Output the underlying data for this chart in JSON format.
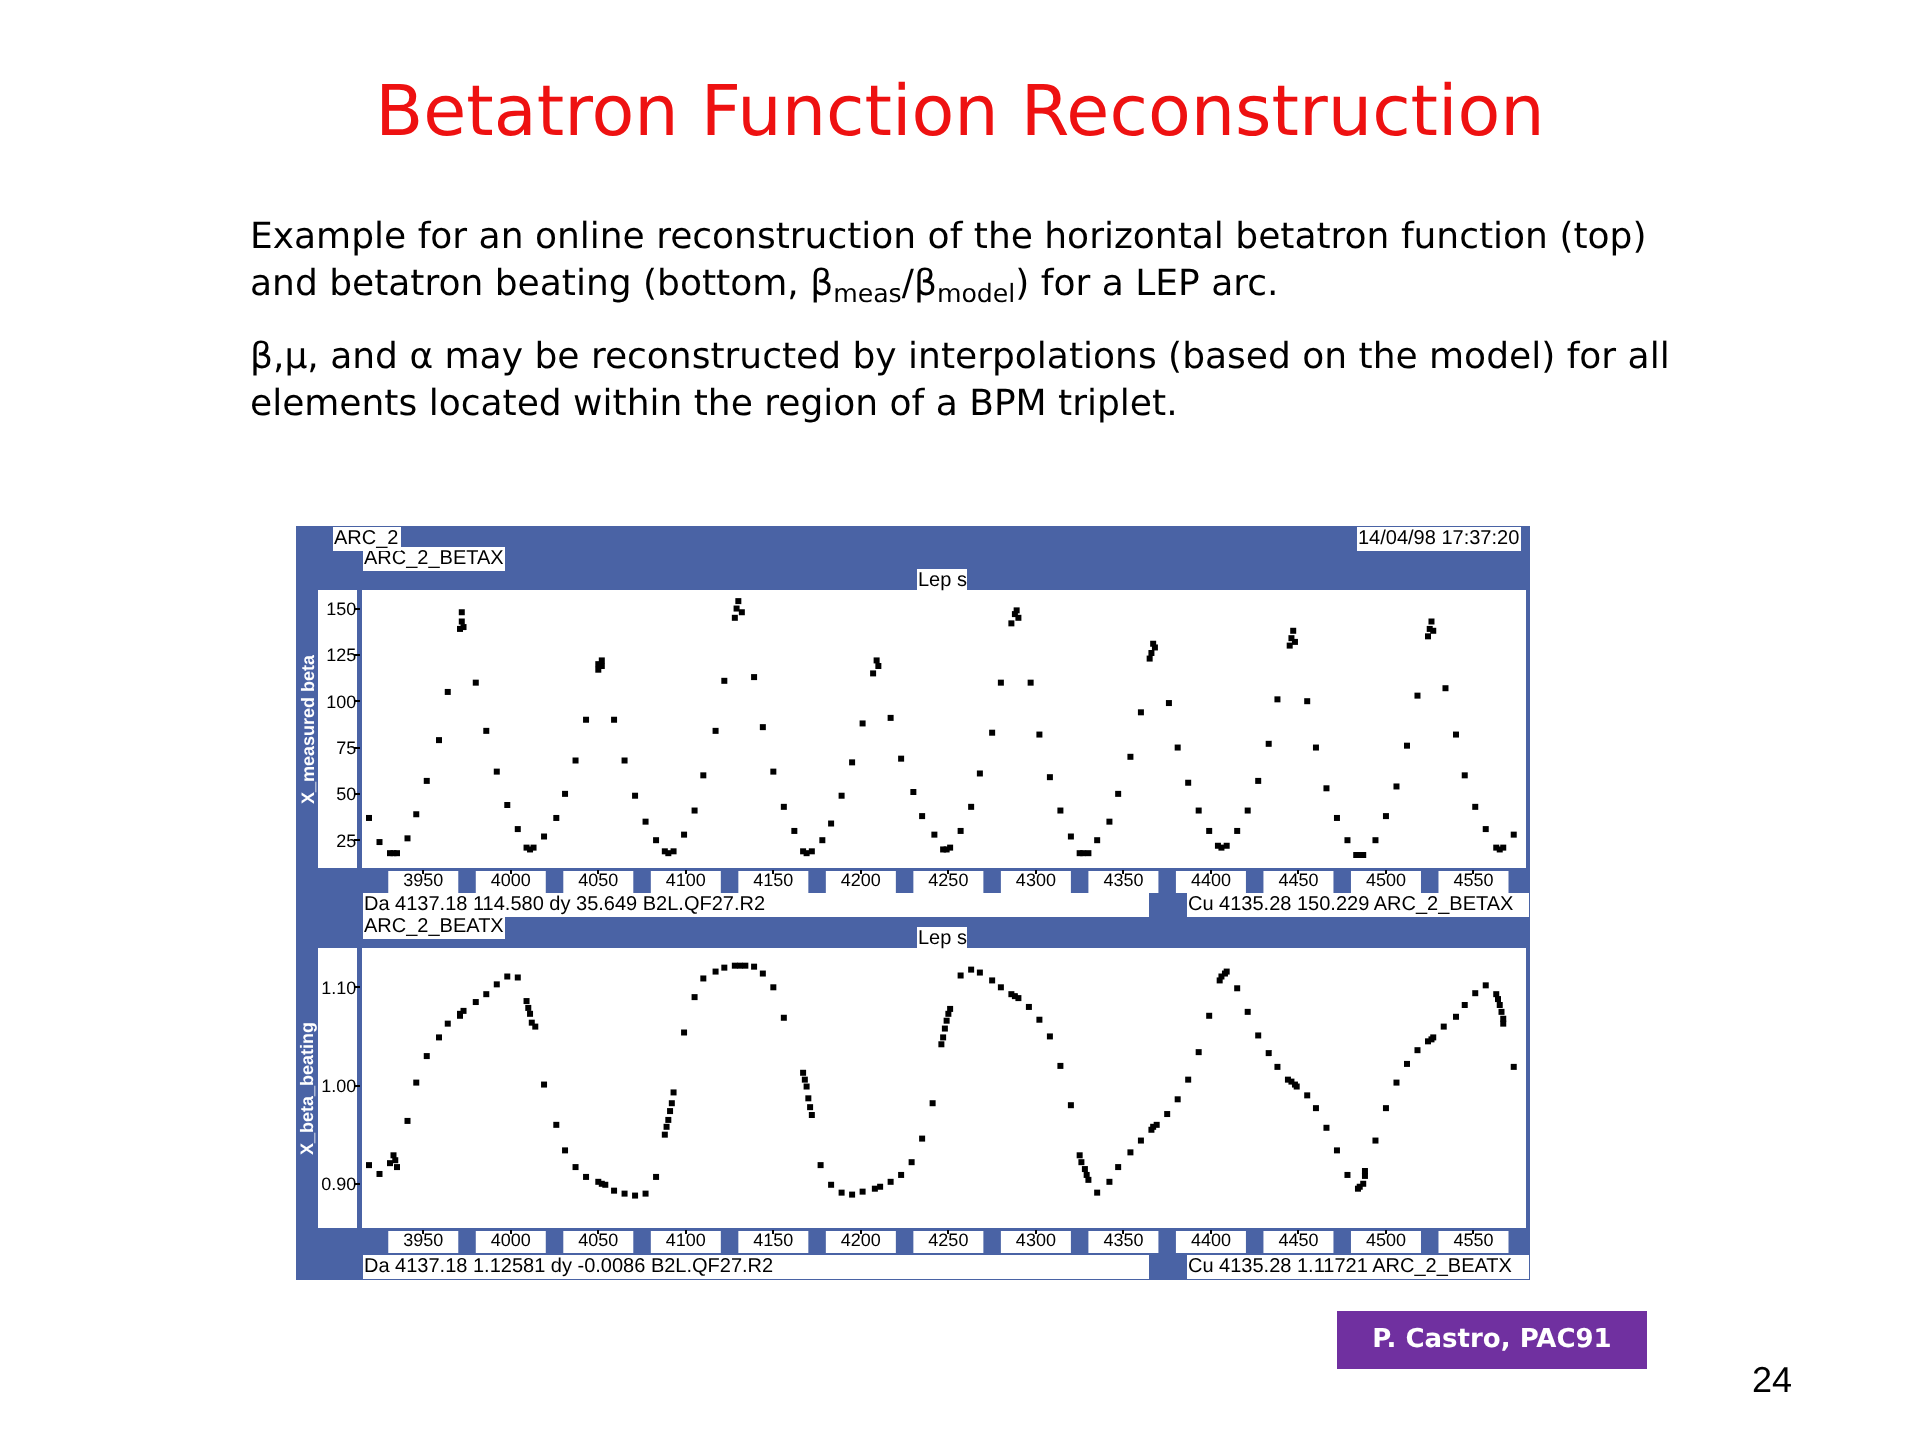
{
  "chart_data": [
    {
      "type": "scatter",
      "title": "Betatron Function Reconstruction",
      "subtitle": "ARC_2_BETAX",
      "xlabel": "Lep s",
      "ylabel": "X_measured beta",
      "annotations": [
        "Example for an online reconstruction of the horizontal betatron function (top) and betatron beating (bottom, β$_{meas}$/β$_{model}$) for a LEP arc.",
        "β,μ, and α may be reconstructed by interpolations (based on the model) for all elements located within the region of a BPM triplet.",
        "ARC_2",
        "14/04/98 17:37:20",
        "Da 4137.18 114.580 dy 35.649 B2L.QF27.R2",
        "Cu 4135.28 150.229 ARC_2_BETAX"
      ],
      "x": [
        3919,
        3925,
        3931,
        3933,
        3935,
        3941,
        3946,
        3952,
        3959,
        3964,
        3972,
        3972,
        3973,
        3971,
        3980,
        3986,
        3992,
        3998,
        4004,
        4009,
        4011,
        4013,
        4019,
        4026,
        4031,
        4037,
        4043,
        4052,
        4050,
        4052,
        4050,
        4059,
        4065,
        4071,
        4077,
        4083,
        4088,
        4090,
        4093,
        4099,
        4105,
        4110,
        4117,
        4122,
        4130,
        4129,
        4132,
        4128,
        4139,
        4144,
        4150,
        4156,
        4162,
        4167,
        4169,
        4172,
        4178,
        4183,
        4189,
        4195,
        4201,
        4209,
        4210,
        4207,
        4217,
        4223,
        4230,
        4235,
        4242,
        4247,
        4249,
        4251,
        4257,
        4263,
        4268,
        4275,
        4280,
        4289,
        4288,
        4290,
        4286,
        4297,
        4302,
        4308,
        4314,
        4320,
        4325,
        4327,
        4330,
        4335,
        4342,
        4347,
        4354,
        4360,
        4367,
        4368,
        4366,
        4365,
        4376,
        4381,
        4387,
        4393,
        4399,
        4404,
        4406,
        4409,
        4415,
        4421,
        4427,
        4433,
        4438,
        4447,
        4446,
        4448,
        4445,
        4455,
        4460,
        4466,
        4472,
        4478,
        4483,
        4485,
        4487,
        4494,
        4500,
        4506,
        4512,
        4518,
        4526,
        4525,
        4527,
        4524,
        4534,
        4540,
        4545,
        4551,
        4557,
        4563,
        4565,
        4567,
        4573
      ],
      "values": [
        37,
        24,
        18,
        18,
        18,
        26,
        39,
        57,
        79,
        105,
        148,
        143,
        140,
        139,
        110,
        84,
        62,
        44,
        31,
        21,
        20,
        21,
        27,
        37,
        50,
        68,
        90,
        122,
        120,
        119,
        117,
        90,
        68,
        49,
        35,
        25,
        19,
        18,
        19,
        28,
        41,
        60,
        84,
        111,
        154,
        150,
        148,
        145,
        113,
        86,
        62,
        43,
        30,
        19,
        18,
        19,
        25,
        34,
        49,
        67,
        88,
        122,
        119,
        115,
        91,
        69,
        51,
        38,
        28,
        20,
        20,
        21,
        30,
        43,
        61,
        83,
        110,
        149,
        147,
        145,
        142,
        110,
        82,
        59,
        41,
        27,
        18,
        18,
        18,
        25,
        35,
        50,
        70,
        94,
        131,
        129,
        126,
        123,
        99,
        75,
        56,
        41,
        30,
        22,
        21,
        22,
        30,
        41,
        57,
        77,
        101,
        138,
        134,
        132,
        130,
        100,
        75,
        53,
        37,
        25,
        17,
        17,
        17,
        25,
        38,
        54,
        76,
        103,
        143,
        139,
        138,
        135,
        107,
        82,
        60,
        43,
        31,
        21,
        20,
        21,
        28
      ],
      "color": "#000000",
      "marker": "square",
      "xlim": [
        3915,
        4580
      ],
      "xticks": [
        3950,
        4000,
        4050,
        4100,
        4150,
        4200,
        4250,
        4300,
        4350,
        4400,
        4450,
        4500,
        4550
      ],
      "ylim": [
        10,
        160
      ],
      "yticks": [
        25,
        50,
        75,
        100,
        125,
        150
      ]
    },
    {
      "type": "scatter",
      "title": "ARC_2_BEATX",
      "xlabel": "Lep s",
      "ylabel": "X_beta_beating",
      "annotations": [
        "Da 4137.18 1.12581 dy -0.0086 B2L.QF27.R2",
        "Cu 4135.28 1.11721 ARC_2_BEATX",
        "P. Castro, PAC91",
        "24"
      ],
      "x": [
        3919,
        3925,
        3933,
        3934,
        3931,
        3935,
        3941,
        3946,
        3952,
        3959,
        3964,
        3971,
        3971,
        3973,
        3980,
        3986,
        3992,
        3998,
        4004,
        4009,
        4010,
        4011,
        4012,
        4014,
        4019,
        4026,
        4031,
        4037,
        4043,
        4050,
        4052,
        4054,
        4059,
        4065,
        4071,
        4077,
        4083,
        4088,
        4089,
        4090,
        4091,
        4092,
        4093,
        4099,
        4105,
        4110,
        4117,
        4122,
        4128,
        4131,
        4134,
        4139,
        4144,
        4150,
        4156,
        4167,
        4168,
        4169,
        4170,
        4171,
        4172,
        4177,
        4183,
        4189,
        4195,
        4201,
        4208,
        4211,
        4217,
        4223,
        4229,
        4235,
        4241,
        4246,
        4247,
        4248,
        4249,
        4250,
        4251,
        4257,
        4263,
        4268,
        4275,
        4280,
        4286,
        4288,
        4290,
        4296,
        4302,
        4308,
        4314,
        4320,
        4325,
        4326,
        4328,
        4329,
        4330,
        4335,
        4342,
        4347,
        4354,
        4360,
        4366,
        4367,
        4369,
        4375,
        4381,
        4387,
        4393,
        4399,
        4405,
        4406,
        4408,
        4409,
        4415,
        4421,
        4427,
        4433,
        4438,
        4444,
        4446,
        4448,
        4449,
        4455,
        4460,
        4466,
        4472,
        4478,
        4484,
        4485,
        4487,
        4488,
        4488,
        4494,
        4500,
        4506,
        4512,
        4518,
        4524,
        4526,
        4527,
        4533,
        4540,
        4545,
        4551,
        4557,
        4563,
        4564,
        4565,
        4566,
        4567,
        4567,
        4573
      ],
      "values": [
        0.919,
        0.91,
        0.929,
        0.924,
        0.921,
        0.917,
        0.964,
        1.003,
        1.03,
        1.049,
        1.063,
        1.071,
        1.073,
        1.076,
        1.085,
        1.093,
        1.103,
        1.111,
        1.11,
        1.086,
        1.079,
        1.073,
        1.064,
        1.06,
        1.001,
        0.96,
        0.934,
        0.917,
        0.907,
        0.902,
        0.9,
        0.899,
        0.893,
        0.89,
        0.888,
        0.89,
        0.907,
        0.95,
        0.958,
        0.965,
        0.974,
        0.982,
        0.993,
        1.054,
        1.09,
        1.109,
        1.116,
        1.12,
        1.122,
        1.122,
        1.122,
        1.121,
        1.114,
        1.1,
        1.069,
        1.013,
        1.006,
        0.999,
        0.987,
        0.978,
        0.97,
        0.919,
        0.899,
        0.891,
        0.889,
        0.892,
        0.895,
        0.897,
        0.902,
        0.909,
        0.922,
        0.946,
        0.982,
        1.042,
        1.049,
        1.058,
        1.066,
        1.073,
        1.078,
        1.112,
        1.118,
        1.115,
        1.107,
        1.1,
        1.093,
        1.091,
        1.089,
        1.08,
        1.067,
        1.05,
        1.02,
        0.98,
        0.929,
        0.922,
        0.915,
        0.909,
        0.904,
        0.891,
        0.902,
        0.917,
        0.932,
        0.944,
        0.955,
        0.958,
        0.96,
        0.971,
        0.986,
        1.006,
        1.034,
        1.071,
        1.107,
        1.111,
        1.114,
        1.116,
        1.099,
        1.075,
        1.051,
        1.033,
        1.019,
        1.006,
        1.004,
        1.001,
        0.999,
        0.99,
        0.977,
        0.957,
        0.934,
        0.909,
        0.895,
        0.897,
        0.9,
        0.908,
        0.913,
        0.944,
        0.977,
        1.003,
        1.022,
        1.036,
        1.045,
        1.047,
        1.049,
        1.06,
        1.07,
        1.082,
        1.094,
        1.102,
        1.093,
        1.088,
        1.082,
        1.075,
        1.068,
        1.063,
        1.019
      ],
      "color": "#000000",
      "marker": "square",
      "xlim": [
        3915,
        4580
      ],
      "xticks": [
        3950,
        4000,
        4050,
        4100,
        4150,
        4200,
        4250,
        4300,
        4350,
        4400,
        4450,
        4500,
        4550
      ],
      "ylim": [
        0.855,
        1.14
      ],
      "yticks": [
        {
          "value": 0.9,
          "label": "0.90"
        },
        {
          "value": 1.0,
          "label": "1.00"
        },
        {
          "value": 1.1,
          "label": "1.10"
        }
      ]
    }
  ]
}
